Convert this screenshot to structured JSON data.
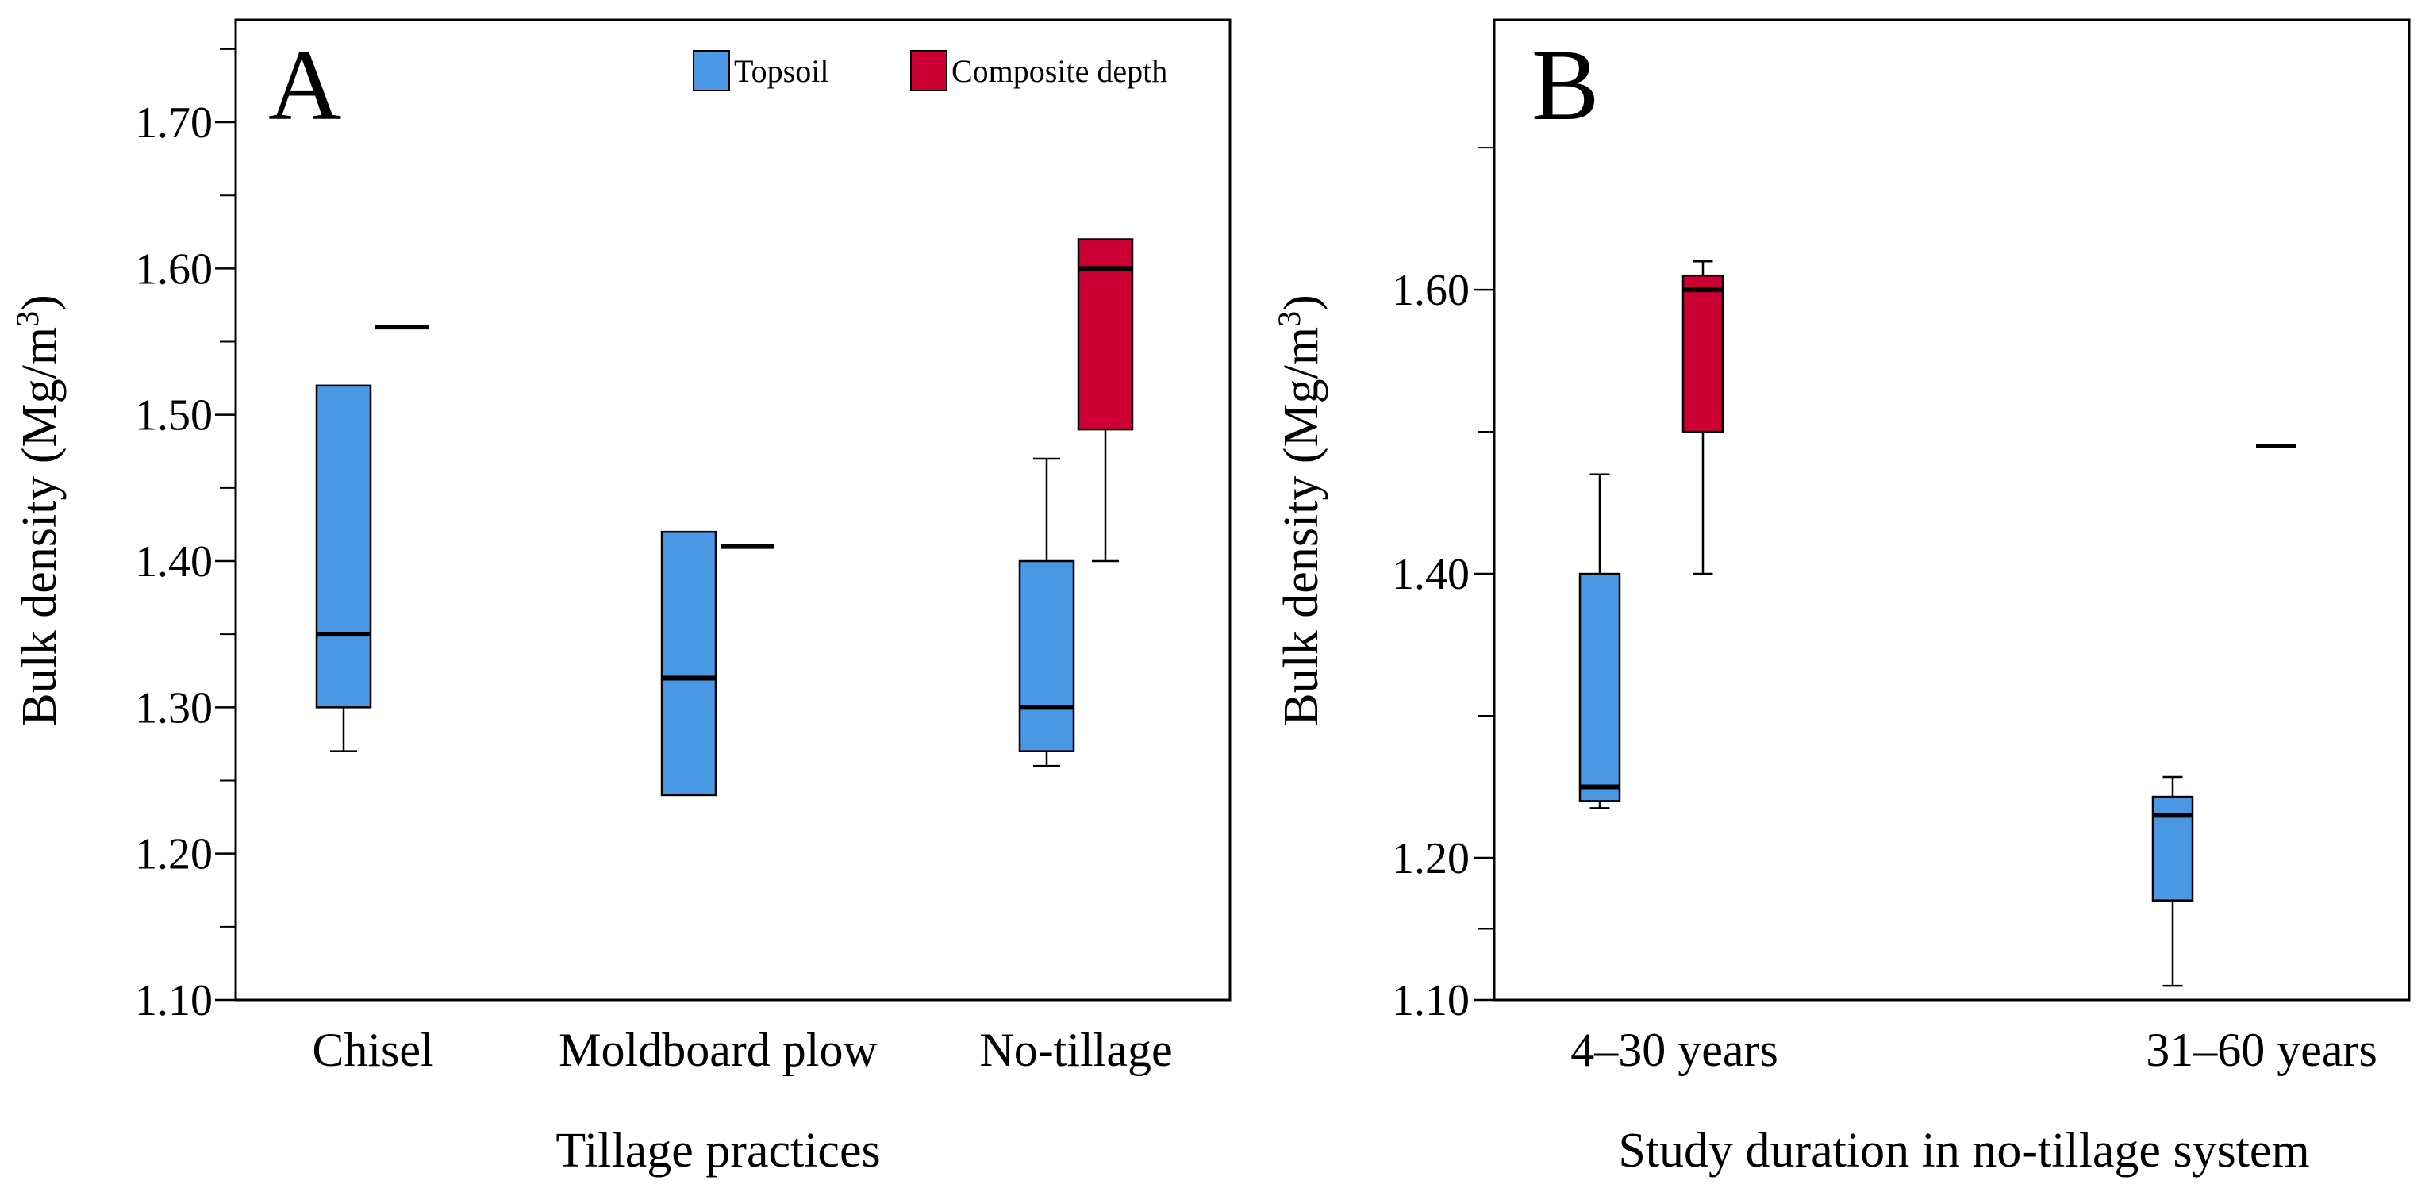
{
  "figure_panels": [
    "A",
    "B"
  ],
  "legend": [
    {
      "label": "Topsoil",
      "color": "#4a97e4"
    },
    {
      "label": "Composite depth",
      "color": "#cc0033"
    }
  ],
  "colors": {
    "topsoil": "#4a97e4",
    "composite": "#cc0033",
    "axis": "#000000"
  },
  "chart_data": [
    {
      "type": "box",
      "panel": "A",
      "xlabel": "Tillage practices",
      "ylabel": "Bulk density (Mg/m",
      "ylabel_sup": "3",
      "ylabel_close": ")",
      "ylim": [
        1.1,
        1.77
      ],
      "yticks": [
        1.1,
        1.2,
        1.3,
        1.4,
        1.5,
        1.6,
        1.7
      ],
      "ytick_labels": [
        "1.10",
        "1.20",
        "1.30",
        "1.40",
        "1.50",
        "1.60",
        "1.70"
      ],
      "minor_step": 0.05,
      "categories": [
        "Chisel",
        "Moldboard plow",
        "No-tillage"
      ],
      "series": [
        {
          "name": "Topsoil",
          "boxes": [
            {
              "whisker_low": 1.27,
              "q1": 1.3,
              "median": 1.35,
              "q3": 1.52,
              "whisker_high": 1.52
            },
            {
              "whisker_low": 1.24,
              "q1": 1.24,
              "median": 1.32,
              "q3": 1.42,
              "whisker_high": 1.42
            },
            {
              "whisker_low": 1.26,
              "q1": 1.27,
              "median": 1.3,
              "q3": 1.4,
              "whisker_high": 1.47
            }
          ]
        },
        {
          "name": "Composite depth",
          "boxes": [
            {
              "whisker_low": 1.56,
              "q1": 1.56,
              "median": 1.56,
              "q3": 1.56,
              "whisker_high": 1.56
            },
            {
              "whisker_low": 1.41,
              "q1": 1.41,
              "median": 1.41,
              "q3": 1.41,
              "whisker_high": 1.41
            },
            {
              "whisker_low": 1.4,
              "q1": 1.49,
              "median": 1.6,
              "q3": 1.62,
              "whisker_high": 1.62
            }
          ]
        }
      ]
    },
    {
      "type": "box",
      "panel": "B",
      "xlabel": "Study duration in no-tillage system",
      "ylabel": "Bulk density (Mg/m",
      "ylabel_sup": "3",
      "ylabel_close": ")",
      "ylim": [
        1.1,
        1.79
      ],
      "yticks": [
        1.1,
        1.2,
        1.4,
        1.6
      ],
      "ytick_labels": [
        "1.10",
        "1.20",
        "1.40",
        "1.60"
      ],
      "minor_ticks": [
        1.15,
        1.3,
        1.5,
        1.7
      ],
      "categories": [
        "4–30 years",
        "31–60 years"
      ],
      "series": [
        {
          "name": "Topsoil",
          "boxes": [
            {
              "whisker_low": 1.235,
              "q1": 1.24,
              "median": 1.25,
              "q3": 1.4,
              "whisker_high": 1.47
            },
            {
              "whisker_low": 1.11,
              "q1": 1.17,
              "median": 1.23,
              "q3": 1.243,
              "whisker_high": 1.257
            }
          ]
        },
        {
          "name": "Composite depth",
          "boxes": [
            {
              "whisker_low": 1.4,
              "q1": 1.5,
              "median": 1.6,
              "q3": 1.61,
              "whisker_high": 1.62
            },
            {
              "whisker_low": 1.49,
              "q1": 1.49,
              "median": 1.49,
              "q3": 1.49,
              "whisker_high": 1.49
            }
          ]
        }
      ]
    }
  ]
}
